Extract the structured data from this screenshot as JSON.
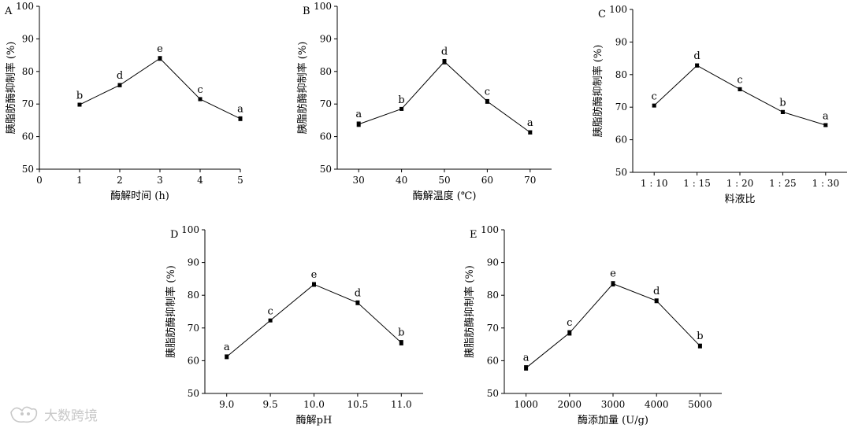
{
  "chart_data": [
    {
      "type": "line",
      "panel": "A",
      "xlabel": "酶解时间 (h)",
      "ylabel": "胰脂肪酶抑制率 (%)",
      "xlim": [
        0,
        5
      ],
      "ylim": [
        50,
        100
      ],
      "xticks": [
        "0",
        "1",
        "2",
        "3",
        "4",
        "5"
      ],
      "yticks": [
        50,
        60,
        70,
        80,
        90,
        100
      ],
      "x": [
        1,
        2,
        3,
        4,
        5
      ],
      "values": [
        69.8,
        75.8,
        84.0,
        71.5,
        65.5
      ],
      "errors": [
        0.4,
        0.5,
        0.6,
        0.5,
        0.6
      ],
      "letters": [
        "b",
        "d",
        "e",
        "c",
        "a"
      ]
    },
    {
      "type": "line",
      "panel": "B",
      "xlabel": "酶解温度 (℃)",
      "ylabel": "胰脂肪酶抑制率 (%)",
      "xlim": [
        25,
        75
      ],
      "ylim": [
        50,
        100
      ],
      "xticks": [
        "30",
        "40",
        "50",
        "60",
        "70"
      ],
      "yticks": [
        50,
        60,
        70,
        80,
        90,
        100
      ],
      "x": [
        30,
        40,
        50,
        60,
        70
      ],
      "values": [
        63.8,
        68.5,
        83.0,
        70.8,
        61.3
      ],
      "errors": [
        0.7,
        0.4,
        0.7,
        0.6,
        0.5
      ],
      "letters": [
        "a",
        "b",
        "d",
        "c",
        "a"
      ]
    },
    {
      "type": "line",
      "panel": "C",
      "xlabel": "料液比",
      "ylabel": "胰脂肪酶抑制率 (%)",
      "xlim": [
        0.5,
        5.5
      ],
      "ylim": [
        50,
        100
      ],
      "xticks": [
        "1 : 10",
        "1 : 15",
        "1 : 20",
        "1 : 25",
        "1 : 30"
      ],
      "yticks": [
        50,
        60,
        70,
        80,
        90,
        100
      ],
      "x": [
        1,
        2,
        3,
        4,
        5
      ],
      "values": [
        70.5,
        82.8,
        75.5,
        68.5,
        64.5
      ],
      "errors": [
        0.4,
        0.5,
        0.5,
        0.5,
        0.4
      ],
      "letters": [
        "c",
        "d",
        "c",
        "b",
        "a"
      ]
    },
    {
      "type": "line",
      "panel": "D",
      "xlabel": "酶解pH",
      "ylabel": "胰脂肪酶抑制率 (%)",
      "xlim": [
        8.75,
        11.25
      ],
      "ylim": [
        50,
        100
      ],
      "xticks": [
        "9.0",
        "9.5",
        "10.0",
        "10.5",
        "11.0"
      ],
      "yticks": [
        50,
        60,
        70,
        80,
        90,
        100
      ],
      "x": [
        9.0,
        9.5,
        10.0,
        10.5,
        11.0
      ],
      "values": [
        61.2,
        72.3,
        83.3,
        77.7,
        65.5
      ],
      "errors": [
        0.6,
        0.4,
        0.6,
        0.6,
        0.7
      ],
      "letters": [
        "a",
        "c",
        "e",
        "d",
        "b"
      ]
    },
    {
      "type": "line",
      "panel": "E",
      "xlabel": "酶添加量 (U/g)",
      "ylabel": "胰脂肪酶抑制率 (%)",
      "xlim": [
        500,
        5500
      ],
      "ylim": [
        50,
        100
      ],
      "xticks": [
        "1000",
        "2000",
        "3000",
        "4000",
        "5000"
      ],
      "yticks": [
        50,
        60,
        70,
        80,
        90,
        100
      ],
      "x": [
        1000,
        2000,
        3000,
        4000,
        5000
      ],
      "values": [
        57.8,
        68.5,
        83.5,
        78.3,
        64.5
      ],
      "errors": [
        0.7,
        0.7,
        0.7,
        0.6,
        0.6
      ],
      "letters": [
        "a",
        "c",
        "e",
        "d",
        "b"
      ]
    }
  ],
  "watermark": "大数跨境"
}
